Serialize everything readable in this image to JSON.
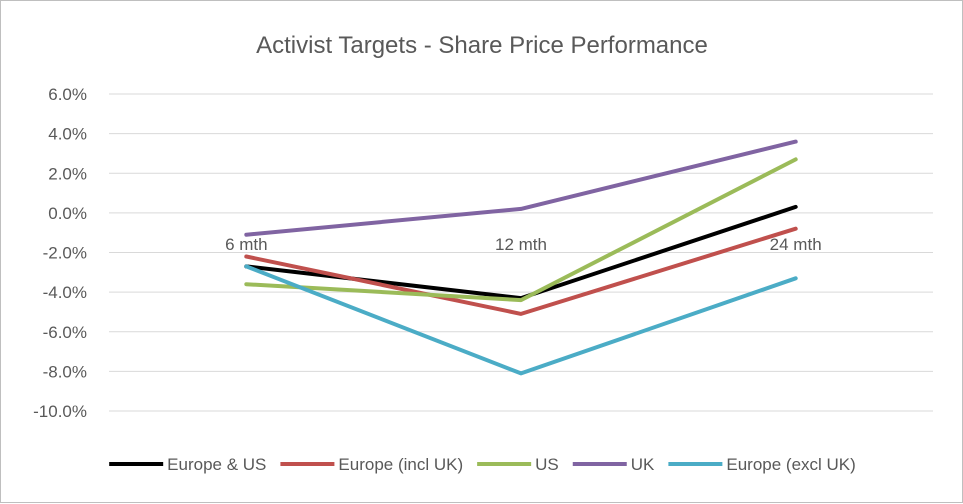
{
  "chart_data": {
    "type": "line",
    "title": "Activist Targets - Share Price Performance",
    "xlabel": "",
    "ylabel": "",
    "categories": [
      "6 mth",
      "12 mth",
      "24 mth"
    ],
    "ylim": [
      -10.0,
      6.0
    ],
    "yticks": [
      6.0,
      4.0,
      2.0,
      0.0,
      -2.0,
      -4.0,
      -6.0,
      -8.0,
      -10.0
    ],
    "ytick_labels": [
      "6.0%",
      "4.0%",
      "2.0%",
      "0.0%",
      "-2.0%",
      "-4.0%",
      "-6.0%",
      "-8.0%",
      "-10.0%"
    ],
    "grid": true,
    "legend_position": "bottom",
    "series": [
      {
        "name": "Europe & US",
        "color": "#000000",
        "values": [
          -2.7,
          -4.3,
          0.3
        ]
      },
      {
        "name": "Europe (incl UK)",
        "color": "#c0504d",
        "values": [
          -2.2,
          -5.1,
          -0.8
        ]
      },
      {
        "name": "US",
        "color": "#9bbb59",
        "values": [
          -3.6,
          -4.4,
          2.7
        ]
      },
      {
        "name": "UK",
        "color": "#8064a2",
        "values": [
          -1.1,
          0.2,
          3.6
        ]
      },
      {
        "name": "Europe (excl UK)",
        "color": "#4bacc6",
        "values": [
          -2.7,
          -8.1,
          -3.3
        ]
      }
    ]
  }
}
